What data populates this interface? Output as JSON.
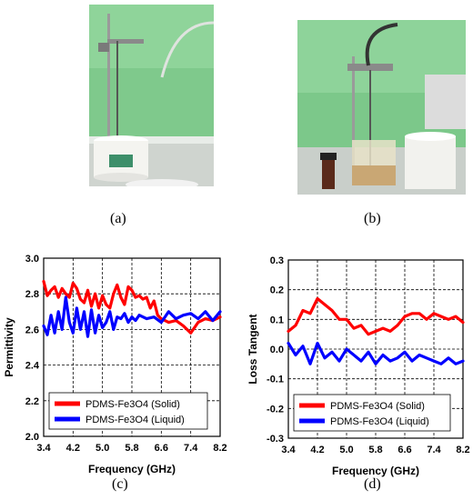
{
  "captions": {
    "a": "(a)",
    "b": "(b)",
    "c": "(c)",
    "d": "(d)"
  },
  "chart_data": [
    {
      "type": "line",
      "xlabel": "Frequency (GHz)",
      "ylabel": "Permittivity",
      "xlim": [
        3.4,
        8.2
      ],
      "ylim": [
        2.0,
        3.0
      ],
      "xticks": [
        "3.4",
        "4.2",
        "5.0",
        "5.8",
        "6.6",
        "7.4",
        "8.2"
      ],
      "yticks": [
        "2.0",
        "2.2",
        "2.4",
        "2.6",
        "2.8",
        "3.0"
      ],
      "grid": true,
      "legend_position": "bottom-left",
      "series": [
        {
          "name": "PDMS-Fe3O4 (Solid)",
          "color": "#ff0000",
          "x": [
            3.4,
            3.5,
            3.6,
            3.7,
            3.8,
            3.9,
            4.0,
            4.1,
            4.2,
            4.3,
            4.4,
            4.5,
            4.6,
            4.7,
            4.8,
            4.9,
            5.0,
            5.1,
            5.2,
            5.3,
            5.4,
            5.5,
            5.6,
            5.7,
            5.8,
            5.9,
            6.0,
            6.1,
            6.2,
            6.3,
            6.4,
            6.5,
            6.6,
            6.8,
            7.0,
            7.2,
            7.4,
            7.6,
            7.8,
            8.0,
            8.2
          ],
          "y": [
            2.87,
            2.79,
            2.82,
            2.84,
            2.78,
            2.83,
            2.8,
            2.78,
            2.86,
            2.83,
            2.77,
            2.75,
            2.82,
            2.73,
            2.8,
            2.72,
            2.79,
            2.74,
            2.72,
            2.8,
            2.85,
            2.78,
            2.74,
            2.84,
            2.82,
            2.78,
            2.79,
            2.77,
            2.78,
            2.72,
            2.76,
            2.68,
            2.66,
            2.64,
            2.65,
            2.62,
            2.58,
            2.64,
            2.66,
            2.65,
            2.67
          ]
        },
        {
          "name": "PDMS-Fe3O4 (Liquid)",
          "color": "#0000ff",
          "x": [
            3.4,
            3.5,
            3.6,
            3.7,
            3.8,
            3.9,
            4.0,
            4.1,
            4.2,
            4.3,
            4.4,
            4.5,
            4.6,
            4.7,
            4.8,
            4.9,
            5.0,
            5.1,
            5.2,
            5.3,
            5.4,
            5.5,
            5.6,
            5.7,
            5.8,
            5.9,
            6.0,
            6.2,
            6.4,
            6.6,
            6.8,
            7.0,
            7.2,
            7.4,
            7.6,
            7.8,
            8.0,
            8.2
          ],
          "y": [
            2.62,
            2.57,
            2.68,
            2.58,
            2.7,
            2.6,
            2.78,
            2.64,
            2.58,
            2.72,
            2.6,
            2.7,
            2.56,
            2.71,
            2.58,
            2.68,
            2.61,
            2.64,
            2.7,
            2.6,
            2.67,
            2.66,
            2.69,
            2.64,
            2.67,
            2.65,
            2.68,
            2.66,
            2.67,
            2.64,
            2.7,
            2.66,
            2.68,
            2.69,
            2.66,
            2.7,
            2.65,
            2.7
          ]
        }
      ]
    },
    {
      "type": "line",
      "xlabel": "Frequency (GHz)",
      "ylabel": "Loss Tangent",
      "xlim": [
        3.4,
        8.2
      ],
      "ylim": [
        -0.3,
        0.3
      ],
      "xticks": [
        "3.4",
        "4.2",
        "5.0",
        "5.8",
        "6.6",
        "7.4",
        "8.2"
      ],
      "yticks": [
        "-0.3",
        "-0.2",
        "-0.1",
        "0.0",
        "0.1",
        "0.2",
        "0.3"
      ],
      "grid": true,
      "legend_position": "bottom-left",
      "series": [
        {
          "name": "PDMS-Fe3O4  (Solid)",
          "color": "#ff0000",
          "x": [
            3.4,
            3.6,
            3.8,
            4.0,
            4.2,
            4.4,
            4.6,
            4.8,
            5.0,
            5.2,
            5.4,
            5.6,
            5.8,
            6.0,
            6.2,
            6.4,
            6.6,
            6.8,
            7.0,
            7.2,
            7.4,
            7.6,
            7.8,
            8.0,
            8.2
          ],
          "y": [
            0.06,
            0.08,
            0.13,
            0.12,
            0.17,
            0.15,
            0.13,
            0.1,
            0.1,
            0.07,
            0.08,
            0.05,
            0.06,
            0.07,
            0.06,
            0.08,
            0.11,
            0.12,
            0.12,
            0.1,
            0.12,
            0.11,
            0.1,
            0.11,
            0.09
          ]
        },
        {
          "name": "PDMS-Fe3O4 (Liquid)",
          "color": "#0000ff",
          "x": [
            3.4,
            3.6,
            3.8,
            4.0,
            4.2,
            4.4,
            4.6,
            4.8,
            5.0,
            5.2,
            5.4,
            5.6,
            5.8,
            6.0,
            6.2,
            6.4,
            6.6,
            6.8,
            7.0,
            7.2,
            7.4,
            7.6,
            7.8,
            8.0,
            8.2
          ],
          "y": [
            0.02,
            -0.02,
            0.01,
            -0.05,
            0.02,
            -0.03,
            -0.01,
            -0.04,
            0.0,
            -0.02,
            -0.04,
            -0.01,
            -0.05,
            -0.02,
            -0.04,
            -0.03,
            -0.01,
            -0.04,
            -0.02,
            -0.03,
            -0.04,
            -0.05,
            -0.03,
            -0.05,
            -0.04
          ]
        }
      ]
    }
  ]
}
